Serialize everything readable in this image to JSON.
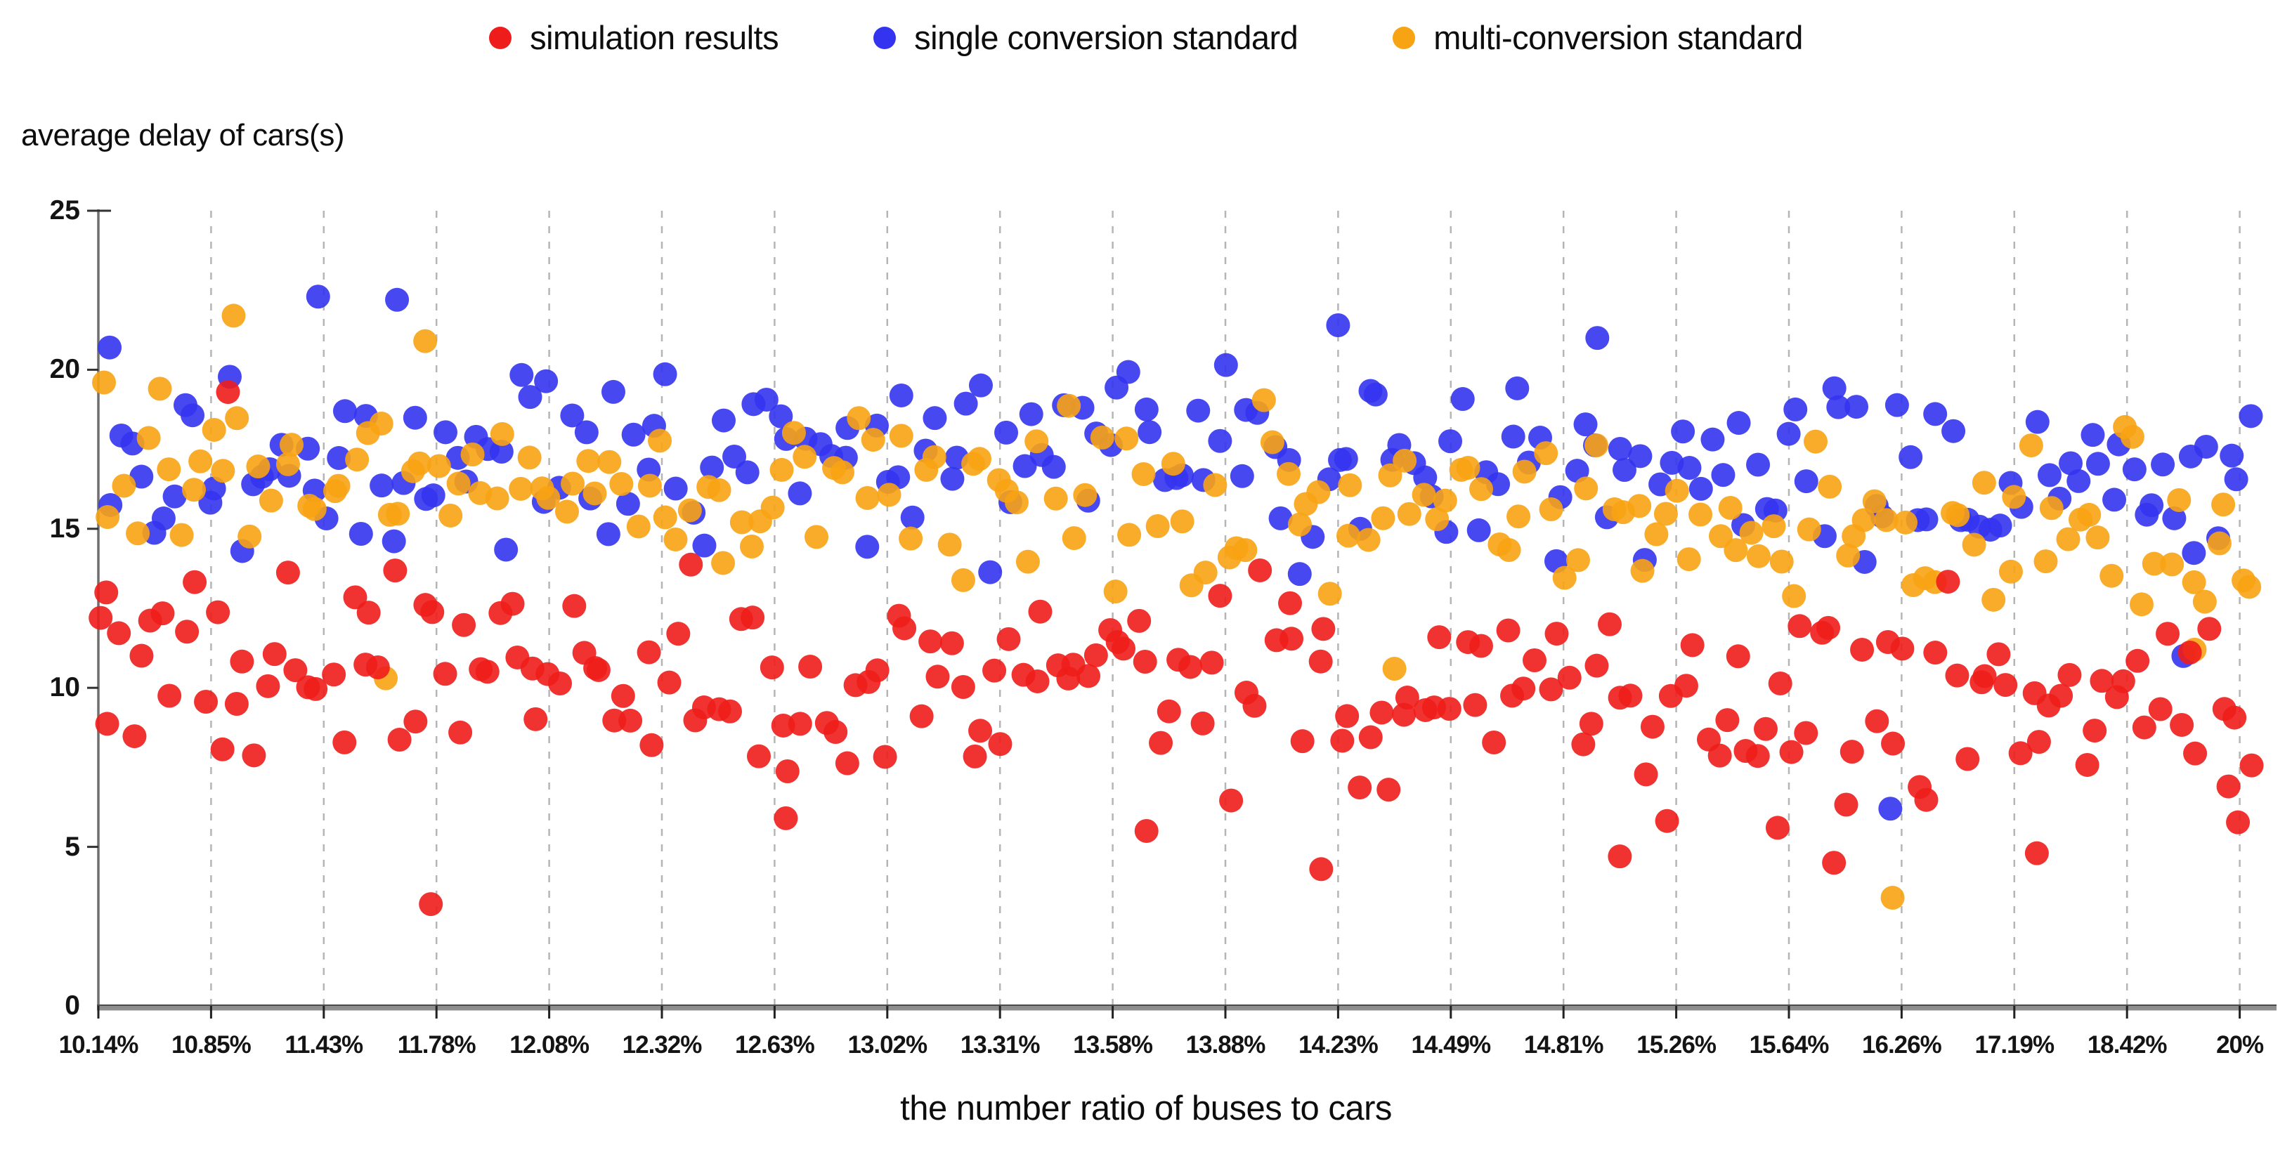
{
  "chart_data": {
    "type": "scatter",
    "title": "",
    "ylabel": "average delay of cars(s)",
    "xlabel": "the number ratio of buses to cars",
    "ylim": [
      0,
      25
    ],
    "y_ticks": [
      0,
      5,
      10,
      15,
      20,
      25
    ],
    "x_tick_labels": [
      "10.14%",
      "10.85%",
      "11.43%",
      "11.78%",
      "12.08%",
      "12.32%",
      "12.63%",
      "13.02%",
      "13.31%",
      "13.58%",
      "13.88%",
      "14.23%",
      "14.49%",
      "14.81%",
      "15.26%",
      "15.64%",
      "16.26%",
      "17.19%",
      "18.42%",
      "20%"
    ],
    "grid": "vertical-dashed",
    "grid_color": "#b5b5b5",
    "legend_position": "top-center",
    "axis_color": "#6f6f6f",
    "series": [
      {
        "name": "simulation results",
        "color": "#ee1d1b",
        "count": 205,
        "y_mean_start": 10.9,
        "y_mean_end": 9.3,
        "y_sd": 1.55,
        "y_min": 5.3,
        "y_max": 14.2,
        "seed": 11,
        "outliers": [
          [
            0.02,
            12.2
          ],
          [
            0.07,
            13.0
          ],
          [
            1.15,
            19.3
          ],
          [
            2.95,
            3.2
          ],
          [
            6.1,
            5.9
          ],
          [
            9.3,
            5.5
          ],
          [
            10.85,
            4.3
          ],
          [
            13.5,
            4.7
          ],
          [
            14.9,
            5.6
          ],
          [
            15.4,
            4.5
          ],
          [
            17.2,
            4.8
          ],
          [
            18.9,
            6.9
          ]
        ]
      },
      {
        "name": "single conversion standard",
        "color": "#3434f0",
        "count": 200,
        "y_mean_start": 17.5,
        "y_mean_end": 16.7,
        "y_sd": 1.5,
        "y_min": 12.2,
        "y_max": 21.2,
        "seed": 22,
        "outliers": [
          [
            0.1,
            20.7
          ],
          [
            1.95,
            22.3
          ],
          [
            2.65,
            22.2
          ],
          [
            11.0,
            21.4
          ],
          [
            13.3,
            21.0
          ],
          [
            15.9,
            6.2
          ],
          [
            18.5,
            11.0
          ]
        ]
      },
      {
        "name": "multi-conversion standard",
        "color": "#f8a313",
        "count": 185,
        "y_mean_start": 16.7,
        "y_mean_end": 14.7,
        "y_sd": 1.35,
        "y_min": 10.1,
        "y_max": 21.8,
        "seed": 33,
        "outliers": [
          [
            0.05,
            19.6
          ],
          [
            1.2,
            21.7
          ],
          [
            2.55,
            10.3
          ],
          [
            2.9,
            20.9
          ],
          [
            11.5,
            10.6
          ],
          [
            15.92,
            3.4
          ],
          [
            18.6,
            11.2
          ]
        ]
      }
    ],
    "draw_order": [
      1,
      2,
      0
    ],
    "point_radius": 17,
    "point_opacity": 0.9
  }
}
